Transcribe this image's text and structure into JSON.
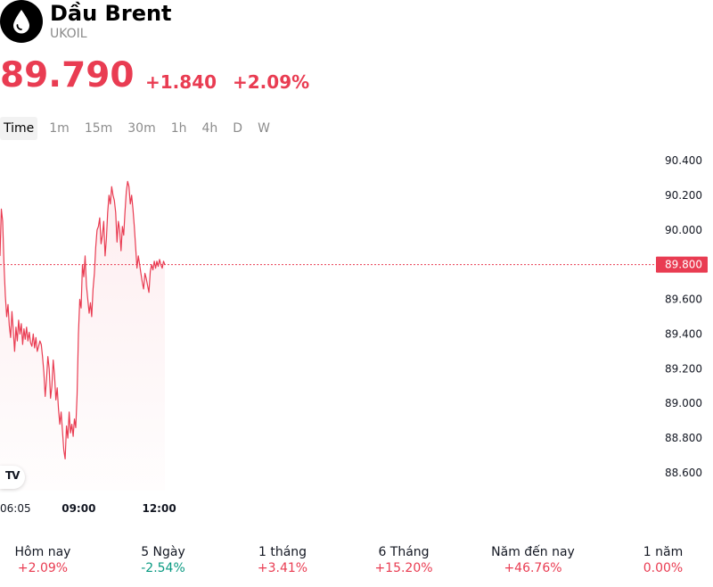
{
  "symbol": {
    "name": "Dầu Brent",
    "ticker": "UKOIL",
    "icon": "oil-drop-icon"
  },
  "quote": {
    "price": "89.790",
    "change": "+1.840",
    "change_pct": "+2.09%",
    "color": "#e93c52"
  },
  "timeframes": [
    {
      "label": "Time",
      "active": true
    },
    {
      "label": "1m",
      "active": false
    },
    {
      "label": "15m",
      "active": false
    },
    {
      "label": "30m",
      "active": false
    },
    {
      "label": "1h",
      "active": false
    },
    {
      "label": "4h",
      "active": false
    },
    {
      "label": "D",
      "active": false
    },
    {
      "label": "W",
      "active": false
    }
  ],
  "chart_data": {
    "type": "area",
    "ylim": [
      88.5,
      90.5
    ],
    "yticks": [
      "90.400",
      "90.200",
      "90.000",
      "89.800",
      "89.600",
      "89.400",
      "89.200",
      "89.000",
      "88.800",
      "88.600"
    ],
    "xticks": [
      {
        "label": "06:05",
        "t": 0,
        "bold": false
      },
      {
        "label": "09:00",
        "t": 0.465,
        "bold": true
      },
      {
        "label": "12:00",
        "t": 0.94,
        "bold": true
      }
    ],
    "last_price_label": "89.800",
    "last_price": 89.8,
    "series": [
      {
        "color": "#e93c52",
        "values": [
          89.85,
          90.12,
          90.05,
          89.8,
          89.62,
          89.5,
          89.57,
          89.45,
          89.38,
          89.53,
          89.42,
          89.3,
          89.44,
          89.36,
          89.48,
          89.4,
          89.46,
          89.34,
          89.43,
          89.37,
          89.44,
          89.36,
          89.41,
          89.35,
          89.33,
          89.4,
          89.32,
          89.38,
          89.3,
          89.33,
          89.36,
          89.34,
          89.27,
          89.18,
          89.04,
          89.14,
          89.27,
          89.2,
          89.03,
          89.1,
          89.25,
          89.16,
          89.02,
          89.09,
          88.97,
          88.88,
          88.95,
          88.84,
          88.73,
          88.68,
          88.87,
          88.8,
          88.95,
          88.83,
          88.88,
          88.81,
          88.91,
          88.86,
          89.05,
          89.4,
          89.6,
          89.55,
          89.8,
          89.73,
          89.85,
          89.68,
          89.6,
          89.52,
          89.58,
          89.5,
          89.66,
          89.75,
          89.9,
          90.0,
          90.02,
          90.07,
          89.92,
          89.97,
          90.05,
          89.85,
          89.95,
          90.1,
          90.2,
          90.15,
          90.25,
          90.2,
          90.17,
          90.1,
          89.93,
          90.05,
          90.0,
          89.88,
          90.02,
          89.97,
          90.1,
          90.22,
          90.28,
          90.25,
          90.15,
          90.2,
          90.12,
          90.02,
          89.9,
          89.78,
          89.85,
          89.8,
          89.75,
          89.7,
          89.66,
          89.75,
          89.72,
          89.68,
          89.64,
          89.76,
          89.8,
          89.77,
          89.82,
          89.78,
          89.82,
          89.79,
          89.83,
          89.8,
          89.78,
          89.82,
          89.8
        ]
      }
    ]
  },
  "periods": [
    {
      "label": "Hôm nay",
      "value": "+2.09%",
      "color": "#e93c52"
    },
    {
      "label": "5 Ngày",
      "value": "-2.54%",
      "color": "#089981"
    },
    {
      "label": "1 tháng",
      "value": "+3.41%",
      "color": "#e93c52"
    },
    {
      "label": "6 Tháng",
      "value": "+15.20%",
      "color": "#e93c52"
    },
    {
      "label": "Năm đến nay",
      "value": "+46.76%",
      "color": "#e93c52"
    },
    {
      "label": "1 năm",
      "value": "0.00%",
      "color": "#e93c52"
    }
  ]
}
